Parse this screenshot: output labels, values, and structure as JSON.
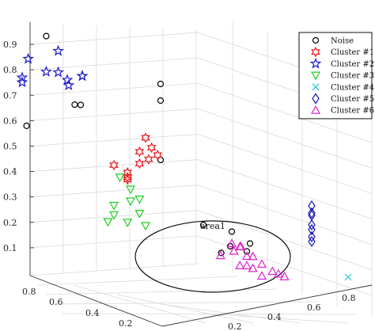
{
  "chart_data": {
    "type": "scatter",
    "projection": "3d",
    "title": "",
    "xlabel": "",
    "ylabel": "",
    "zlabel": "",
    "xlim": [
      0,
      1
    ],
    "ylim": [
      0,
      1
    ],
    "zlim": [
      0,
      1
    ],
    "x_ticks": [
      "0.2",
      "0.4",
      "0.6",
      "0.8"
    ],
    "y_ticks": [
      "0.2",
      "0.4",
      "0.6",
      "0.8"
    ],
    "z_ticks": [
      "0.1",
      "0.2",
      "0.3",
      "0.4",
      "0.5",
      "0.6",
      "0.7",
      "0.8",
      "0.9"
    ],
    "grid": true,
    "legend_position": "top-right",
    "series": [
      {
        "name": "Noise",
        "marker": "circle",
        "color": "#000000",
        "points": [
          [
            0.08,
            0.8,
            0.98
          ],
          [
            0.02,
            0.85,
            0.6
          ],
          [
            0.18,
            0.85,
            0.7
          ],
          [
            0.2,
            0.85,
            0.7
          ],
          [
            0.45,
            0.7,
            0.8
          ],
          [
            0.45,
            0.7,
            0.73
          ],
          [
            0.45,
            0.7,
            0.48
          ],
          [
            0.55,
            0.3,
            0.2
          ],
          [
            0.65,
            0.35,
            0.18
          ],
          [
            0.7,
            0.25,
            0.13
          ],
          [
            0.65,
            0.4,
            0.12
          ],
          [
            0.7,
            0.35,
            0.1
          ],
          [
            0.62,
            0.4,
            0.09
          ]
        ]
      },
      {
        "name": "Cluster #1",
        "marker": "hexagram",
        "color": "#e8191d",
        "points": [
          [
            0.4,
            0.7,
            0.57
          ],
          [
            0.42,
            0.7,
            0.53
          ],
          [
            0.38,
            0.7,
            0.51
          ],
          [
            0.44,
            0.7,
            0.5
          ],
          [
            0.41,
            0.7,
            0.48
          ],
          [
            0.38,
            0.7,
            0.46
          ],
          [
            0.34,
            0.7,
            0.42
          ],
          [
            0.34,
            0.7,
            0.4
          ],
          [
            0.34,
            0.7,
            0.39
          ],
          [
            0.3,
            0.75,
            0.45
          ]
        ]
      },
      {
        "name": "Cluster #2",
        "marker": "pentagram",
        "color": "#1a1ac8",
        "points": [
          [
            0.02,
            0.8,
            0.88
          ],
          [
            0.12,
            0.8,
            0.92
          ],
          [
            0.08,
            0.8,
            0.83
          ],
          [
            0.12,
            0.8,
            0.83
          ],
          [
            0.15,
            0.8,
            0.8
          ],
          [
            0.2,
            0.8,
            0.82
          ],
          [
            0.2,
            0.8,
            0.82
          ],
          [
            0.0,
            0.8,
            0.8
          ],
          [
            0.0,
            0.8,
            0.78
          ],
          [
            0.16,
            0.85,
            0.78
          ]
        ]
      },
      {
        "name": "Cluster #3",
        "marker": "triangle-down",
        "color": "#22cc22",
        "points": [
          [
            0.35,
            0.7,
            0.35
          ],
          [
            0.32,
            0.75,
            0.4
          ],
          [
            0.35,
            0.7,
            0.3
          ],
          [
            0.38,
            0.7,
            0.31
          ],
          [
            0.38,
            0.7,
            0.25
          ],
          [
            0.3,
            0.75,
            0.28
          ],
          [
            0.3,
            0.75,
            0.24
          ],
          [
            0.34,
            0.7,
            0.21
          ],
          [
            0.28,
            0.75,
            0.21
          ],
          [
            0.4,
            0.7,
            0.2
          ]
        ]
      },
      {
        "name": "Cluster #4",
        "marker": "x",
        "color": "#19c8d8",
        "points": [
          [
            1.0,
            0.0,
            0.0
          ]
        ]
      },
      {
        "name": "Cluster #5",
        "marker": "diamond",
        "color": "#1a1ab4",
        "points": [
          [
            0.9,
            0.2,
            0.3
          ],
          [
            0.9,
            0.2,
            0.27
          ],
          [
            0.9,
            0.2,
            0.26
          ],
          [
            0.9,
            0.2,
            0.22
          ],
          [
            0.9,
            0.2,
            0.2
          ],
          [
            0.9,
            0.2,
            0.17
          ],
          [
            0.9,
            0.2,
            0.15
          ]
        ]
      },
      {
        "name": "Cluster #6",
        "marker": "triangle-up",
        "color": "#e020d0",
        "points": [
          [
            0.65,
            0.35,
            0.13
          ],
          [
            0.68,
            0.35,
            0.12
          ],
          [
            0.68,
            0.38,
            0.12
          ],
          [
            0.66,
            0.38,
            0.1
          ],
          [
            0.7,
            0.35,
            0.08
          ],
          [
            0.72,
            0.35,
            0.08
          ],
          [
            0.75,
            0.35,
            0.05
          ],
          [
            0.7,
            0.35,
            0.04
          ],
          [
            0.68,
            0.38,
            0.04
          ],
          [
            0.72,
            0.35,
            0.03
          ],
          [
            0.78,
            0.3,
            0.02
          ],
          [
            0.8,
            0.3,
            0.01
          ],
          [
            0.82,
            0.3,
            0.0
          ],
          [
            0.75,
            0.35,
            0.0
          ],
          [
            0.62,
            0.42,
            0.08
          ]
        ]
      }
    ],
    "annotations": [
      {
        "text": "area1",
        "shape": "ellipse"
      }
    ]
  }
}
